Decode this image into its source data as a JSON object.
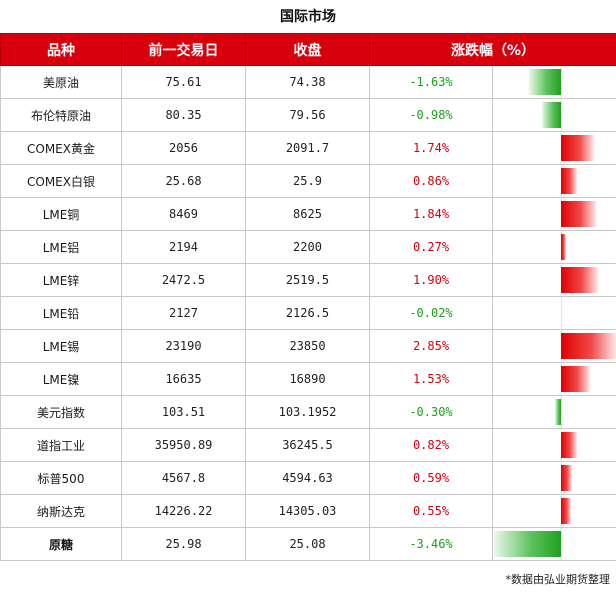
{
  "title": "国际市场",
  "headers": [
    "品种",
    "前一交易日",
    "收盘",
    "涨跌幅（%）"
  ],
  "footer": "*数据由弘业期货整理",
  "colors": {
    "header_bg": "#d9000d",
    "up": "#d8000c",
    "down": "#1aa01a"
  },
  "chart_data": {
    "type": "table",
    "title": "国际市场",
    "columns": [
      "品种",
      "前一交易日",
      "收盘",
      "涨跌幅（%）"
    ],
    "rows": [
      {
        "name": "美原油",
        "prev": "75.61",
        "close": "74.38",
        "change_text": "-1.63%",
        "change": -1.63
      },
      {
        "name": "布伦特原油",
        "prev": "80.35",
        "close": "79.56",
        "change_text": "-0.98%",
        "change": -0.98
      },
      {
        "name": "COMEX黄金",
        "prev": "2056",
        "close": "2091.7",
        "change_text": "1.74%",
        "change": 1.74
      },
      {
        "name": "COMEX白银",
        "prev": "25.68",
        "close": "25.9",
        "change_text": "0.86%",
        "change": 0.86
      },
      {
        "name": "LME铜",
        "prev": "8469",
        "close": "8625",
        "change_text": "1.84%",
        "change": 1.84
      },
      {
        "name": "LME铝",
        "prev": "2194",
        "close": "2200",
        "change_text": "0.27%",
        "change": 0.27
      },
      {
        "name": "LME锌",
        "prev": "2472.5",
        "close": "2519.5",
        "change_text": "1.90%",
        "change": 1.9
      },
      {
        "name": "LME铅",
        "prev": "2127",
        "close": "2126.5",
        "change_text": "-0.02%",
        "change": -0.02
      },
      {
        "name": "LME锡",
        "prev": "23190",
        "close": "23850",
        "change_text": "2.85%",
        "change": 2.85
      },
      {
        "name": "LME镍",
        "prev": "16635",
        "close": "16890",
        "change_text": "1.53%",
        "change": 1.53
      },
      {
        "name": "美元指数",
        "prev": "103.51",
        "close": "103.1952",
        "change_text": "-0.30%",
        "change": -0.3
      },
      {
        "name": "道指工业",
        "prev": "35950.89",
        "close": "36245.5",
        "change_text": "0.82%",
        "change": 0.82
      },
      {
        "name": "标普500",
        "prev": "4567.8",
        "close": "4594.63",
        "change_text": "0.59%",
        "change": 0.59
      },
      {
        "name": "纳斯达克",
        "prev": "14226.22",
        "close": "14305.03",
        "change_text": "0.55%",
        "change": 0.55
      },
      {
        "name": "原糖",
        "prev": "25.98",
        "close": "25.08",
        "change_text": "-3.46%",
        "change": -3.46,
        "bold": true
      }
    ],
    "bar_range": [
      -3.46,
      2.85
    ]
  }
}
